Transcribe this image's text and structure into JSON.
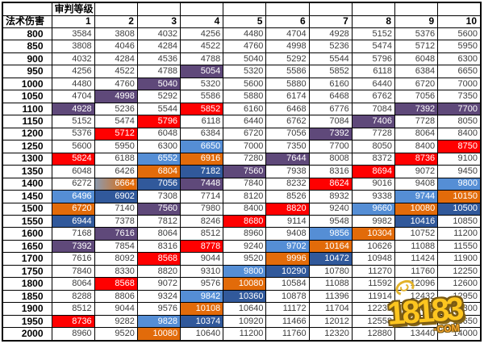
{
  "table": {
    "corner_label": "",
    "header_group_label": "审判等级",
    "row_header_label": "法术伤害",
    "level_columns": [
      "1",
      "2",
      "3",
      "4",
      "5",
      "6",
      "7",
      "8",
      "9",
      "10"
    ],
    "rows": [
      {
        "damage": "800",
        "values": [
          "3584",
          "3808",
          "4032",
          "4256",
          "4480",
          "4704",
          "4928",
          "5152",
          "5376",
          "5600"
        ],
        "highlights": {}
      },
      {
        "damage": "850",
        "values": [
          "3808",
          "4046",
          "4284",
          "4522",
          "4760",
          "4998",
          "5236",
          "5474",
          "5712",
          "5950"
        ],
        "highlights": {}
      },
      {
        "damage": "900",
        "values": [
          "4032",
          "4284",
          "4536",
          "4788",
          "5040",
          "5292",
          "5544",
          "5796",
          "6048",
          "6300"
        ],
        "highlights": {}
      },
      {
        "damage": "950",
        "values": [
          "4256",
          "4522",
          "4788",
          "5054",
          "5320",
          "5586",
          "5852",
          "6118",
          "6384",
          "6650"
        ],
        "highlights": {
          "4": "purple"
        }
      },
      {
        "damage": "1000",
        "values": [
          "4480",
          "4760",
          "5040",
          "5320",
          "5600",
          "5880",
          "6160",
          "6440",
          "6720",
          "7000"
        ],
        "highlights": {
          "3": "purple"
        }
      },
      {
        "damage": "1050",
        "values": [
          "4704",
          "4998",
          "5292",
          "5586",
          "5880",
          "6174",
          "6468",
          "6762",
          "7056",
          "7350"
        ],
        "highlights": {
          "2": "purple"
        }
      },
      {
        "damage": "1100",
        "values": [
          "4928",
          "5236",
          "5544",
          "5852",
          "6160",
          "6468",
          "6776",
          "7084",
          "7392",
          "7700"
        ],
        "highlights": {
          "1": "purple",
          "4": "red",
          "9": "purple",
          "10": "purple"
        }
      },
      {
        "damage": "1150",
        "values": [
          "5152",
          "5474",
          "5796",
          "6118",
          "6440",
          "6762",
          "7084",
          "7406",
          "7728",
          "8050"
        ],
        "highlights": {
          "3": "red",
          "8": "purple"
        }
      },
      {
        "damage": "1200",
        "values": [
          "5376",
          "5712",
          "6048",
          "6384",
          "6720",
          "7056",
          "7392",
          "7728",
          "8064",
          "8400"
        ],
        "highlights": {
          "2": "red",
          "7": "purple"
        }
      },
      {
        "damage": "1250",
        "values": [
          "5600",
          "5950",
          "6300",
          "6650",
          "7000",
          "7350",
          "7700",
          "8050",
          "8400",
          "8750"
        ],
        "highlights": {
          "4": "lightblue",
          "10": "red"
        }
      },
      {
        "damage": "1300",
        "values": [
          "5824",
          "6188",
          "6552",
          "6916",
          "7280",
          "7644",
          "8008",
          "8372",
          "8736",
          "9100"
        ],
        "highlights": {
          "1": "red",
          "3": "lightblue",
          "4": "orange",
          "6": "purple",
          "9": "red"
        }
      },
      {
        "damage": "1350",
        "values": [
          "6048",
          "6426",
          "6804",
          "7182",
          "7560",
          "7938",
          "8316",
          "8694",
          "9072",
          "9450"
        ],
        "highlights": {
          "3": "orange",
          "4": "darkblue",
          "5": "purple",
          "8": "red"
        }
      },
      {
        "damage": "1400",
        "values": [
          "6272",
          "6664",
          "7056",
          "7448",
          "7840",
          "8232",
          "8624",
          "9016",
          "9408",
          "9800"
        ],
        "highlights": {
          "2": "gradient",
          "3": "darkblue",
          "4": "purple",
          "7": "red",
          "10": "lightblue"
        }
      },
      {
        "damage": "1450",
        "values": [
          "6496",
          "6902",
          "7308",
          "7714",
          "8120",
          "8526",
          "8932",
          "9338",
          "9744",
          "10150"
        ],
        "highlights": {
          "1": "lightblue",
          "2": "darkblue",
          "9": "lightblue",
          "10": "orange"
        }
      },
      {
        "damage": "1500",
        "values": [
          "6720",
          "7140",
          "7560",
          "7980",
          "8400",
          "8820",
          "9240",
          "9660",
          "10080",
          "10500"
        ],
        "highlights": {
          "1": "orange",
          "3": "purple",
          "6": "red",
          "8": "lightblue",
          "9": "orange",
          "10": "darkblue"
        }
      },
      {
        "damage": "1550",
        "values": [
          "6944",
          "7378",
          "7812",
          "8246",
          "8680",
          "9114",
          "9548",
          "9982",
          "10416",
          "10850"
        ],
        "highlights": {
          "1": "darkblue",
          "5": "red",
          "9": "darkblue"
        }
      },
      {
        "damage": "1600",
        "values": [
          "7168",
          "7616",
          "8064",
          "8512",
          "8960",
          "9408",
          "9856",
          "10304",
          "10752",
          "11200"
        ],
        "highlights": {
          "2": "purple",
          "7": "lightblue",
          "8": "orange"
        }
      },
      {
        "damage": "1650",
        "values": [
          "7392",
          "7854",
          "8316",
          "8778",
          "9240",
          "9702",
          "10164",
          "10626",
          "11088",
          "11550"
        ],
        "highlights": {
          "1": "purple",
          "4": "red",
          "6": "lightblue",
          "7": "orange"
        }
      },
      {
        "damage": "1700",
        "values": [
          "7616",
          "8092",
          "8568",
          "9044",
          "9520",
          "9996",
          "10472",
          "10948",
          "11424",
          "11900"
        ],
        "highlights": {
          "3": "red",
          "6": "orange",
          "7": "darkblue"
        }
      },
      {
        "damage": "1750",
        "values": [
          "7840",
          "8330",
          "8820",
          "9310",
          "9800",
          "10290",
          "10780",
          "11270",
          "11760",
          "12250"
        ],
        "highlights": {
          "5": "lightblue",
          "6": "darkblue"
        }
      },
      {
        "damage": "1800",
        "values": [
          "8064",
          "8568",
          "9072",
          "9576",
          "10080",
          "10584",
          "11088",
          "11592",
          "12096",
          "12600"
        ],
        "highlights": {
          "2": "red",
          "5": "orange"
        }
      },
      {
        "damage": "1850",
        "values": [
          "8288",
          "8806",
          "9324",
          "9842",
          "10360",
          "10878",
          "11396",
          "11914",
          "12432",
          "12950"
        ],
        "highlights": {
          "4": "lightblue",
          "5": "darkblue"
        }
      },
      {
        "damage": "1900",
        "values": [
          "8512",
          "9044",
          "9576",
          "10108",
          "10640",
          "11172",
          "11704",
          "12236",
          "12768",
          "13300"
        ],
        "highlights": {
          "4": "orange"
        }
      },
      {
        "damage": "1950",
        "values": [
          "8736",
          "9282",
          "9828",
          "10374",
          "10920",
          "11466",
          "12012",
          "12558",
          "13104",
          "13650"
        ],
        "highlights": {
          "1": "red",
          "3": "lightblue",
          "4": "darkblue"
        }
      },
      {
        "damage": "2000",
        "values": [
          "8960",
          "9520",
          "10080",
          "10640",
          "11200",
          "11760",
          "12320",
          "12880",
          "13440",
          "14000"
        ],
        "highlights": {
          "3": "orange"
        }
      }
    ]
  },
  "colors": {
    "purple": "#5F497A",
    "red": "#FF0000",
    "lightblue": "#558ED5",
    "darkblue": "#31599B",
    "orange": "#E26B0A",
    "gradient_from": "#8B9BB0",
    "gradient_to": "#E26B0A"
  },
  "watermark": {
    "text": "18183",
    "suffix": "·COM"
  }
}
